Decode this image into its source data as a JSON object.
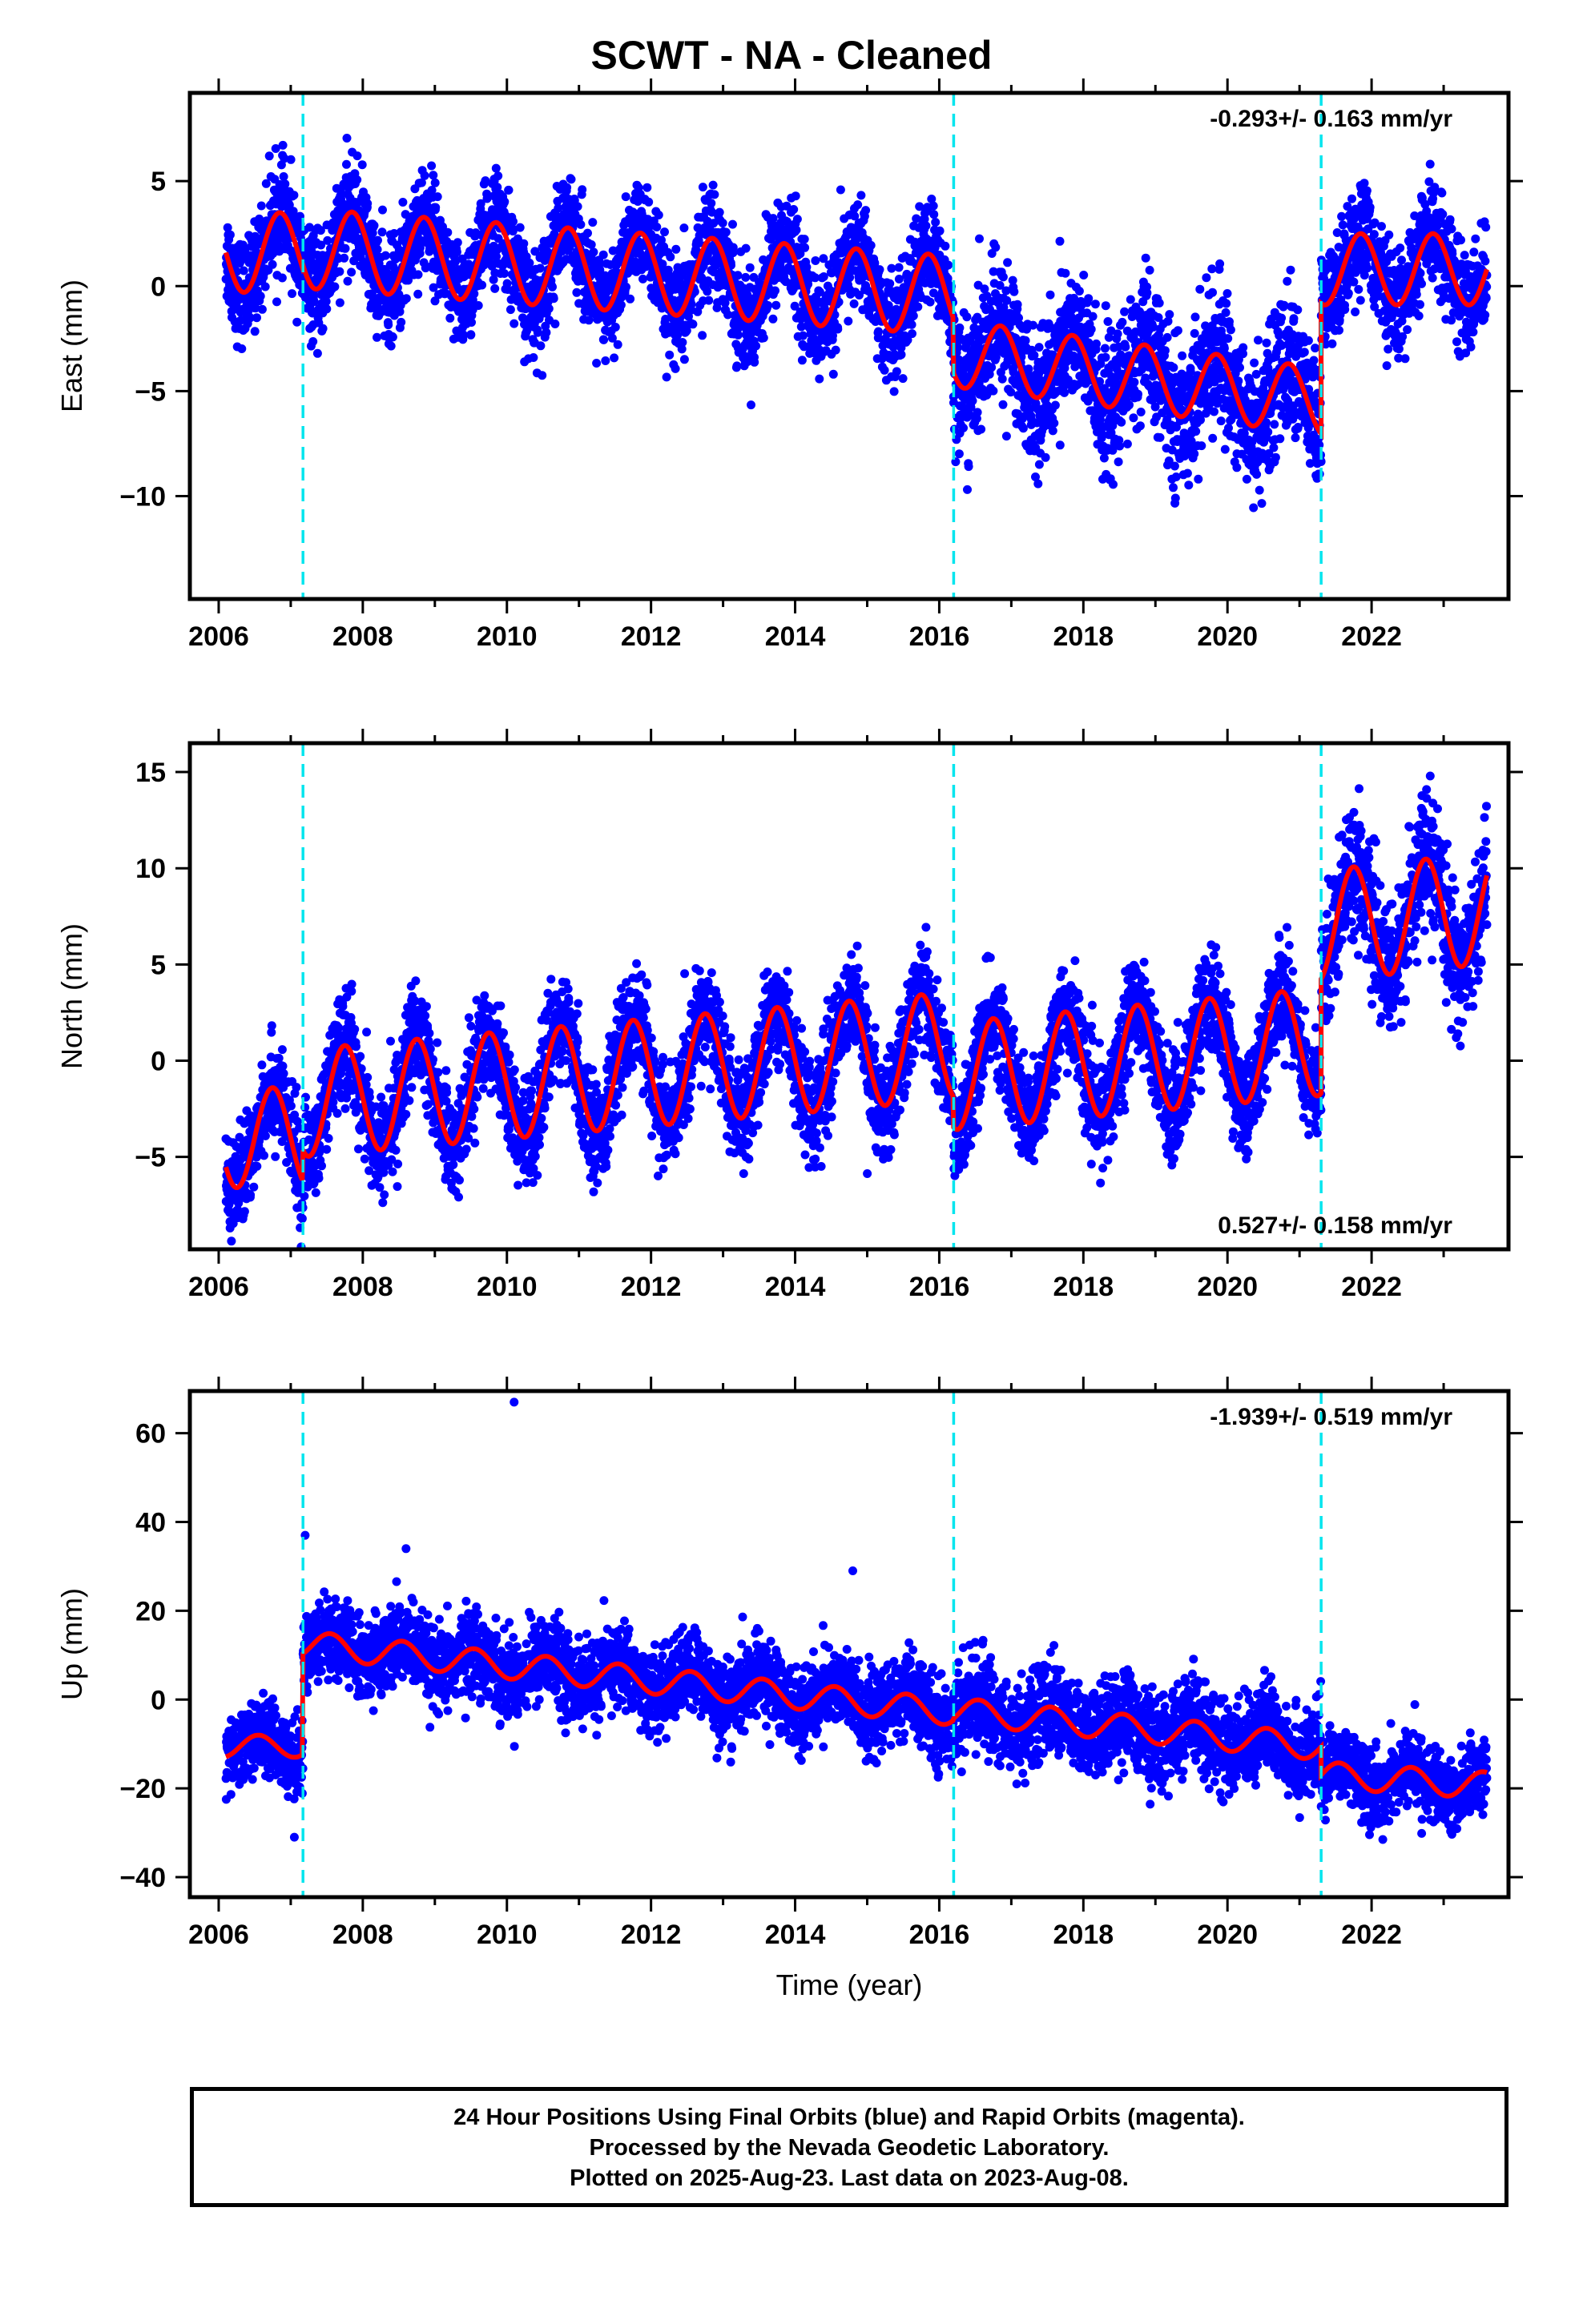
{
  "title": "SCWT  - NA - Cleaned",
  "xlabel": "Time (year)",
  "footer": [
    "24 Hour Positions Using Final Orbits (blue) and Rapid Orbits (magenta).",
    "Processed by the Nevada Geodetic Laboratory.",
    "Plotted on 2025-Aug-23. Last data on 2023-Aug-08."
  ],
  "colors": {
    "points": "#0000ff",
    "model": "#ff0000",
    "offsets": "#00e5ee"
  },
  "chart_data": [
    {
      "type": "scatter",
      "name": "east",
      "ylabel": "East (mm)",
      "rate": "-0.293+/- 0.163 mm/yr",
      "rate_position": "top-right",
      "xlim": [
        2005.6,
        2023.9
      ],
      "ylim": [
        -14.9,
        9.2
      ],
      "xticks": [
        "2006",
        "2008",
        "2010",
        "2012",
        "2014",
        "2016",
        "2018",
        "2020",
        "2022"
      ],
      "yticks": [
        "5",
        "0",
        "−5",
        "−10"
      ],
      "ytick_values": [
        5,
        0,
        -5,
        -10
      ],
      "offsets": [
        2007.17,
        2016.2,
        2021.3
      ],
      "data_range": [
        2006.1,
        2023.6
      ],
      "segments": [
        {
          "start": 2006.1,
          "end": 2007.17,
          "level": 1.6,
          "slope": 0,
          "amplitude": 1.9,
          "noise": 1.2,
          "phase": 0.6
        },
        {
          "start": 2007.17,
          "end": 2016.2,
          "level": 1.8,
          "slope": -0.25,
          "amplitude": 1.9,
          "noise": 1.2,
          "phase": 0.6
        },
        {
          "start": 2016.2,
          "end": 2021.3,
          "level": -3.2,
          "slope": -0.45,
          "amplitude": 1.6,
          "noise": 1.6,
          "phase": 0.6
        },
        {
          "start": 2021.3,
          "end": 2023.6,
          "level": 0.8,
          "slope": 0,
          "amplitude": 1.7,
          "noise": 1.2,
          "phase": 0.6
        }
      ]
    },
    {
      "type": "scatter",
      "name": "north",
      "ylabel": "North (mm)",
      "rate": "0.527+/- 0.158 mm/yr",
      "rate_position": "bottom-right",
      "xlim": [
        2005.6,
        2023.9
      ],
      "ylim": [
        -9.8,
        16.5
      ],
      "xticks": [
        "2006",
        "2008",
        "2010",
        "2012",
        "2014",
        "2016",
        "2018",
        "2020",
        "2022"
      ],
      "yticks": [
        "15",
        "10",
        "5",
        "0",
        "−5"
      ],
      "ytick_values": [
        15,
        10,
        5,
        0,
        -5
      ],
      "offsets": [
        2007.17,
        2016.2,
        2021.3
      ],
      "data_range": [
        2006.1,
        2023.6
      ],
      "segments": [
        {
          "start": 2006.1,
          "end": 2007.17,
          "level": -4.0,
          "slope": 0,
          "amplitude": 2.6,
          "noise": 1.3,
          "phase": 0.5
        },
        {
          "start": 2007.17,
          "end": 2016.2,
          "level": -2.2,
          "slope": 0.33,
          "amplitude": 2.8,
          "noise": 1.3,
          "phase": 0.5
        },
        {
          "start": 2016.2,
          "end": 2021.3,
          "level": -0.8,
          "slope": 0.35,
          "amplitude": 2.8,
          "noise": 1.3,
          "phase": 0.5
        },
        {
          "start": 2021.3,
          "end": 2023.6,
          "level": 7.0,
          "slope": 0.4,
          "amplitude": 2.9,
          "noise": 1.6,
          "phase": 0.5
        }
      ]
    },
    {
      "type": "scatter",
      "name": "up",
      "ylabel": "Up (mm)",
      "rate": "-1.939+/- 0.519 mm/yr",
      "rate_position": "top-right",
      "xlim": [
        2005.6,
        2023.9
      ],
      "ylim": [
        -44.5,
        69.5
      ],
      "xticks": [
        "2006",
        "2008",
        "2010",
        "2012",
        "2014",
        "2016",
        "2018",
        "2020",
        "2022"
      ],
      "yticks": [
        "60",
        "40",
        "20",
        "0",
        "−20",
        "−40"
      ],
      "ytick_values": [
        60,
        40,
        20,
        0,
        -20,
        -40
      ],
      "offsets": [
        2007.17,
        2016.2,
        2021.3
      ],
      "data_range": [
        2006.1,
        2023.6
      ],
      "segments": [
        {
          "start": 2006.1,
          "end": 2007.17,
          "level": -10.5,
          "slope": 0,
          "amplitude": 2.5,
          "noise": 4.0,
          "phase": 0.3
        },
        {
          "start": 2007.17,
          "end": 2016.2,
          "level": 12.5,
          "slope": -1.7,
          "amplitude": 3.0,
          "noise": 4.5,
          "phase": 0.3
        },
        {
          "start": 2016.2,
          "end": 2021.3,
          "level": -2.5,
          "slope": -1.6,
          "amplitude": 3.0,
          "noise": 5.0,
          "phase": 0.3
        },
        {
          "start": 2021.3,
          "end": 2023.6,
          "level": -17.0,
          "slope": -1.0,
          "amplitude": 3.0,
          "noise": 4.0,
          "phase": 0.3
        }
      ],
      "outliers": [
        [
          2010.1,
          67
        ],
        [
          2007.2,
          37
        ],
        [
          2007.05,
          -31
        ],
        [
          2014.8,
          29
        ],
        [
          2008.6,
          34
        ]
      ]
    }
  ]
}
